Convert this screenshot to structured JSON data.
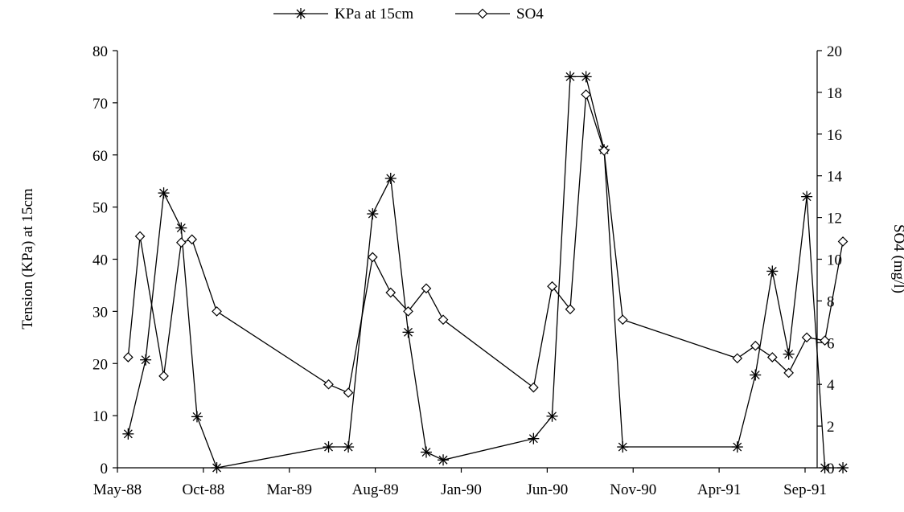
{
  "chart_data": {
    "type": "line",
    "title": "",
    "x_ticks": [
      "May-88",
      "Oct-88",
      "Mar-89",
      "Aug-89",
      "Jan-90",
      "Jun-90",
      "Nov-90",
      "Apr-91",
      "Sep-91"
    ],
    "ylabel_left": "Tension (KPa) at 15cm",
    "ylabel_right": "SO4 (mg/l)",
    "ylim_left": [
      0,
      80
    ],
    "ylim_right": [
      0,
      20
    ],
    "y_ticks_left": [
      "0",
      "10",
      "20",
      "30",
      "40",
      "50",
      "60",
      "70",
      "80"
    ],
    "y_ticks_right": [
      "0",
      "2",
      "4",
      "6",
      "8",
      "10",
      "12",
      "14",
      "16",
      "18",
      "20"
    ],
    "grid": false,
    "legend_position": "top-center",
    "series": [
      {
        "name": "KPa at 15cm",
        "axis": "left",
        "marker": "asterisk",
        "color": "#000000",
        "points": [
          {
            "x": "1988-05-20",
            "y": 6.5
          },
          {
            "x": "1988-06-20",
            "y": 20.7
          },
          {
            "x": "1988-07-22",
            "y": 52.7
          },
          {
            "x": "1988-08-22",
            "y": 46.0
          },
          {
            "x": "1988-09-19",
            "y": 9.8
          },
          {
            "x": "1988-10-24",
            "y": 0.0
          },
          {
            "x": "1989-05-10",
            "y": 4.0
          },
          {
            "x": "1989-06-14",
            "y": 4.0
          },
          {
            "x": "1989-07-27",
            "y": 48.7
          },
          {
            "x": "1989-08-28",
            "y": 55.5
          },
          {
            "x": "1989-09-28",
            "y": 26.0
          },
          {
            "x": "1989-10-30",
            "y": 3.0
          },
          {
            "x": "1989-11-29",
            "y": 1.5
          },
          {
            "x": "1990-05-08",
            "y": 5.6
          },
          {
            "x": "1990-06-10",
            "y": 9.9
          },
          {
            "x": "1990-07-12",
            "y": 75.0
          },
          {
            "x": "1990-08-09",
            "y": 75.0
          },
          {
            "x": "1990-09-10",
            "y": 61.0
          },
          {
            "x": "1990-10-13",
            "y": 4.0
          },
          {
            "x": "1991-05-04",
            "y": 4.0
          },
          {
            "x": "1991-06-05",
            "y": 17.8
          },
          {
            "x": "1991-07-05",
            "y": 37.7
          },
          {
            "x": "1991-08-03",
            "y": 21.8
          },
          {
            "x": "1991-09-04",
            "y": 52.0
          },
          {
            "x": "1991-10-06",
            "y": 0.0
          },
          {
            "x": "1991-11-07",
            "y": 0.0
          }
        ]
      },
      {
        "name": "SO4",
        "axis": "right",
        "marker": "diamond",
        "color": "#000000",
        "points": [
          {
            "x": "1988-05-20",
            "y": 5.3
          },
          {
            "x": "1988-06-10",
            "y": 11.1
          },
          {
            "x": "1988-07-22",
            "y": 4.4
          },
          {
            "x": "1988-08-22",
            "y": 10.8
          },
          {
            "x": "1988-09-10",
            "y": 10.95
          },
          {
            "x": "1988-10-24",
            "y": 7.5
          },
          {
            "x": "1989-05-10",
            "y": 4.0
          },
          {
            "x": "1989-06-14",
            "y": 3.6
          },
          {
            "x": "1989-07-27",
            "y": 10.1
          },
          {
            "x": "1989-08-28",
            "y": 8.4
          },
          {
            "x": "1989-09-28",
            "y": 7.5
          },
          {
            "x": "1989-10-30",
            "y": 8.6
          },
          {
            "x": "1989-11-29",
            "y": 7.1
          },
          {
            "x": "1990-05-08",
            "y": 3.85
          },
          {
            "x": "1990-06-10",
            "y": 8.7
          },
          {
            "x": "1990-07-12",
            "y": 7.6
          },
          {
            "x": "1990-08-09",
            "y": 17.9
          },
          {
            "x": "1990-09-10",
            "y": 15.2
          },
          {
            "x": "1990-10-13",
            "y": 7.1
          },
          {
            "x": "1991-05-04",
            "y": 5.25
          },
          {
            "x": "1991-06-05",
            "y": 5.85
          },
          {
            "x": "1991-07-05",
            "y": 5.3
          },
          {
            "x": "1991-08-03",
            "y": 4.55
          },
          {
            "x": "1991-09-04",
            "y": 6.25
          },
          {
            "x": "1991-10-06",
            "y": 6.1
          },
          {
            "x": "1991-11-07",
            "y": 10.85
          }
        ]
      }
    ]
  }
}
